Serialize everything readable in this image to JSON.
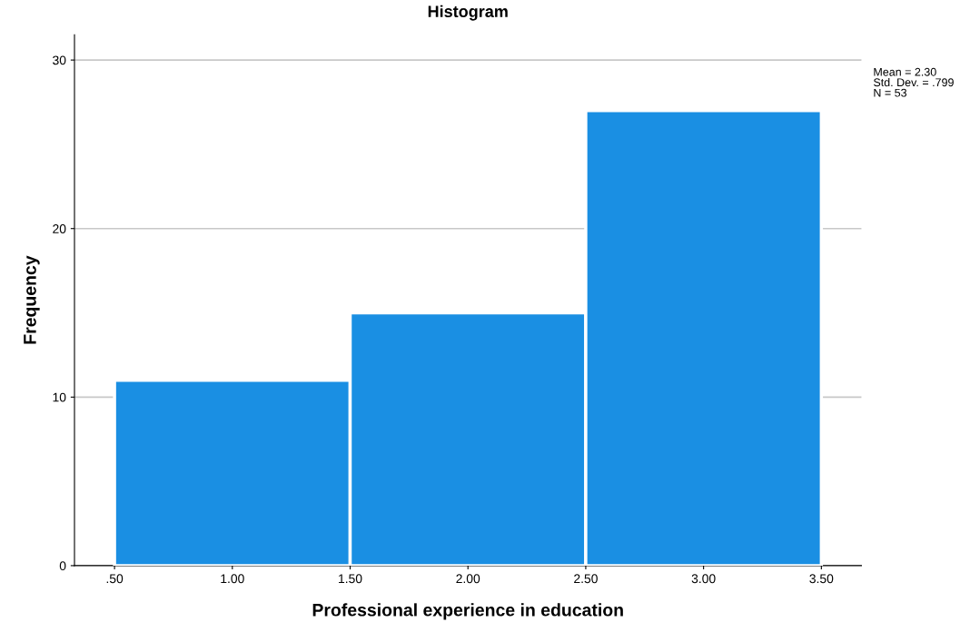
{
  "chart_data": {
    "type": "histogram",
    "title": "Histogram",
    "xlabel": "Professional experience in education",
    "ylabel": "Frequency",
    "bins": [
      0.5,
      1.5,
      2.5,
      3.5
    ],
    "values": [
      11,
      15,
      27
    ],
    "color": "#1a8fe3",
    "xlim": [
      0.33,
      3.67
    ],
    "ylim": [
      0,
      31.5
    ],
    "xticks": [
      {
        "value": 0.5,
        "label": ".50"
      },
      {
        "value": 1.0,
        "label": "1.00"
      },
      {
        "value": 1.5,
        "label": "1.50"
      },
      {
        "value": 2.0,
        "label": "2.00"
      },
      {
        "value": 2.5,
        "label": "2.50"
      },
      {
        "value": 3.0,
        "label": "3.00"
      },
      {
        "value": 3.5,
        "label": "3.50"
      }
    ],
    "yticks": [
      0,
      10,
      20,
      30
    ],
    "grid": "y",
    "annotations": [
      "Mean = 2.30",
      "Std. Dev. = .799",
      "N = 53"
    ]
  }
}
